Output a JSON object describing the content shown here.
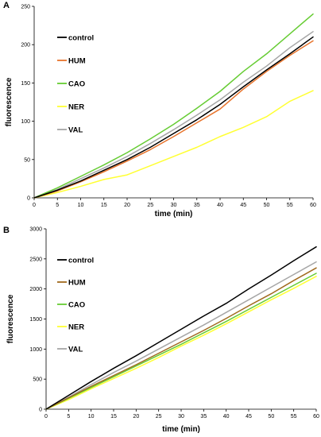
{
  "chart_data": [
    {
      "type": "line",
      "panel_label": "A",
      "xlabel": "time (min)",
      "ylabel": "fluorescence",
      "xlim": [
        0,
        60
      ],
      "ylim": [
        0,
        250
      ],
      "x_ticks": [
        0,
        5,
        10,
        15,
        20,
        25,
        30,
        35,
        40,
        45,
        50,
        55,
        60
      ],
      "y_ticks": [
        0,
        50,
        100,
        150,
        200,
        250
      ],
      "grid": false,
      "legend_position": "left",
      "x": [
        0,
        5,
        10,
        15,
        20,
        25,
        30,
        35,
        40,
        45,
        50,
        55,
        60
      ],
      "series": [
        {
          "name": "control",
          "color": "#000000",
          "values": [
            0,
            10,
            22,
            36,
            50,
            66,
            84,
            102,
            122,
            145,
            167,
            188,
            210
          ]
        },
        {
          "name": "HUM",
          "color": "#E8742C",
          "values": [
            0,
            9,
            21,
            34,
            48,
            63,
            80,
            98,
            116,
            142,
            165,
            186,
            205
          ]
        },
        {
          "name": "CAO",
          "color": "#66CC33",
          "values": [
            0,
            13,
            28,
            43,
            59,
            77,
            96,
            117,
            139,
            165,
            188,
            214,
            240
          ]
        },
        {
          "name": "NER",
          "color": "#FFFF33",
          "values": [
            0,
            7,
            15,
            24,
            30,
            42,
            54,
            66,
            80,
            92,
            106,
            126,
            140
          ]
        },
        {
          "name": "VAL",
          "color": "#A6A6A6",
          "values": [
            0,
            11,
            25,
            39,
            54,
            71,
            89,
            108,
            128,
            151,
            172,
            196,
            217
          ]
        }
      ]
    },
    {
      "type": "line",
      "panel_label": "B",
      "xlabel": "time (min)",
      "ylabel": "fluorescence",
      "xlim": [
        0,
        60
      ],
      "ylim": [
        0,
        3000
      ],
      "x_ticks": [
        0,
        5,
        10,
        15,
        20,
        25,
        30,
        35,
        40,
        45,
        50,
        55,
        60
      ],
      "y_ticks": [
        0,
        500,
        1000,
        1500,
        2000,
        2500,
        3000
      ],
      "grid": false,
      "legend_position": "left",
      "x": [
        0,
        5,
        10,
        15,
        20,
        25,
        30,
        35,
        40,
        45,
        50,
        55,
        60
      ],
      "series": [
        {
          "name": "control",
          "color": "#000000",
          "values": [
            0,
            230,
            460,
            680,
            890,
            1110,
            1330,
            1550,
            1760,
            2000,
            2230,
            2470,
            2700
          ]
        },
        {
          "name": "HUM",
          "color": "#A06A1E",
          "values": [
            0,
            190,
            380,
            560,
            740,
            930,
            1120,
            1310,
            1510,
            1720,
            1920,
            2140,
            2350
          ]
        },
        {
          "name": "CAO",
          "color": "#66CC33",
          "values": [
            0,
            180,
            360,
            540,
            720,
            900,
            1080,
            1270,
            1460,
            1660,
            1860,
            2060,
            2260
          ]
        },
        {
          "name": "NER",
          "color": "#FFFF33",
          "values": [
            0,
            160,
            340,
            510,
            680,
            860,
            1050,
            1230,
            1420,
            1620,
            1820,
            2010,
            2210
          ]
        },
        {
          "name": "VAL",
          "color": "#A6A6A6",
          "values": [
            0,
            200,
            410,
            610,
            800,
            1000,
            1200,
            1400,
            1610,
            1820,
            2030,
            2240,
            2450
          ]
        }
      ]
    }
  ]
}
